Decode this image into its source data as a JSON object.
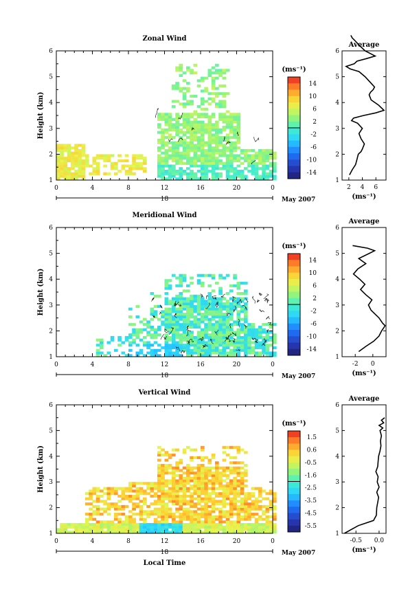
{
  "chart_data": [
    {
      "type": "heatmap",
      "title": "Zonal Wind",
      "ylabel": "Height (km)",
      "xlabel": "",
      "xlim": [
        0,
        24
      ],
      "ylim": [
        1,
        6
      ],
      "x_ticks": [
        "0",
        "4",
        "8",
        "12",
        "16",
        "20",
        "0"
      ],
      "y_ticks": [
        "1",
        "2",
        "3",
        "4",
        "5",
        "6"
      ],
      "date_label": "18",
      "date_right": "May 2007",
      "colorbar": {
        "unit": "(ms⁻¹)",
        "range": [
          -15,
          15
        ],
        "tick_labels": [
          "14",
          "10",
          "6",
          "2",
          "-2",
          "-6",
          "-10",
          "-14"
        ]
      },
      "profile": {
        "title": "Average",
        "xlabel": "(ms⁻¹)",
        "x_ticks": [
          "2",
          "4",
          "6"
        ],
        "xlim": [
          1,
          7.5
        ],
        "heights": [
          1.2,
          1.4,
          1.6,
          1.8,
          2.0,
          2.1,
          2.2,
          2.4,
          2.6,
          2.8,
          3.0,
          3.2,
          3.3,
          3.4,
          3.5,
          3.6,
          3.7,
          3.9,
          4.1,
          4.3,
          4.4,
          4.5,
          4.6,
          4.8,
          5.0,
          5.2,
          5.3,
          5.4,
          5.5,
          5.6,
          5.7,
          5.8,
          6.0,
          6.2,
          6.4,
          6.5,
          6.6
        ],
        "values": [
          2.1,
          2.5,
          3.0,
          3.2,
          3.4,
          3.8,
          4.0,
          4.3,
          3.8,
          3.5,
          4.0,
          3.3,
          2.4,
          2.7,
          4.2,
          6.0,
          7.2,
          6.4,
          5.3,
          5.0,
          5.2,
          5.6,
          5.8,
          5.1,
          4.4,
          3.5,
          2.2,
          1.6,
          2.8,
          3.2,
          4.6,
          5.9,
          4.4,
          3.6,
          2.9,
          2.5,
          2.3
        ]
      }
    },
    {
      "type": "heatmap",
      "title": "Meridional Wind",
      "ylabel": "Height (km)",
      "xlabel": "",
      "xlim": [
        0,
        24
      ],
      "ylim": [
        1,
        6
      ],
      "x_ticks": [
        "0",
        "4",
        "8",
        "12",
        "16",
        "20",
        "0"
      ],
      "y_ticks": [
        "1",
        "2",
        "3",
        "4",
        "5",
        "6"
      ],
      "date_label": "18",
      "date_right": "May 2007",
      "colorbar": {
        "unit": "(ms⁻¹)",
        "range": [
          -15,
          15
        ],
        "tick_labels": [
          "14",
          "10",
          "6",
          "2",
          "-2",
          "-6",
          "-10",
          "-14"
        ]
      },
      "profile": {
        "title": "Average",
        "xlabel": "(ms⁻¹)",
        "x_ticks": [
          "-2",
          "0"
        ],
        "xlim": [
          -3.5,
          1.5
        ],
        "heights": [
          1.2,
          1.4,
          1.6,
          1.8,
          2.0,
          2.2,
          2.3,
          2.5,
          2.6,
          2.8,
          3.0,
          3.2,
          3.4,
          3.6,
          3.8,
          4.0,
          4.2,
          4.4,
          4.6,
          4.8,
          5.0,
          5.1,
          5.2,
          5.3
        ],
        "values": [
          -1.6,
          -0.8,
          0.1,
          0.7,
          1.0,
          1.4,
          1.1,
          0.7,
          0.4,
          -0.2,
          -0.5,
          -0.1,
          -0.8,
          -1.4,
          -0.9,
          -1.5,
          -2.2,
          -1.7,
          -0.8,
          -1.6,
          -0.4,
          0.2,
          -0.6,
          -2.3
        ]
      }
    },
    {
      "type": "heatmap",
      "title": "Vertical Wind",
      "ylabel": "Height (km)",
      "xlabel": "Local Time",
      "xlim": [
        0,
        24
      ],
      "ylim": [
        1,
        6
      ],
      "x_ticks": [
        "0",
        "4",
        "8",
        "12",
        "16",
        "20",
        "0"
      ],
      "y_ticks": [
        "1",
        "2",
        "3",
        "4",
        "5",
        "6"
      ],
      "date_label": "18",
      "date_right": "May 2007",
      "colorbar": {
        "unit": "(ms⁻¹)",
        "range": [
          -6.1,
          2.0
        ],
        "tick_labels": [
          "1.5",
          "0.6",
          "-0.5",
          "-1.6",
          "-2.5",
          "-3.5",
          "-4.5",
          "-5.5"
        ]
      },
      "profile": {
        "title": "Average",
        "xlabel": "(ms⁻¹)",
        "x_ticks": [
          "-0.5",
          "0.0"
        ],
        "xlim": [
          -0.8,
          0.15
        ],
        "heights": [
          1.0,
          1.3,
          1.5,
          1.7,
          2.0,
          2.2,
          2.4,
          2.6,
          2.8,
          3.0,
          3.2,
          3.4,
          3.6,
          3.8,
          4.0,
          4.2,
          4.4,
          4.6,
          4.8,
          5.0,
          5.1,
          5.2,
          5.3,
          5.4,
          5.5
        ],
        "values": [
          -0.75,
          -0.45,
          -0.12,
          -0.06,
          -0.05,
          -0.03,
          -0.01,
          -0.05,
          0.0,
          -0.04,
          -0.02,
          -0.07,
          -0.03,
          -0.02,
          -0.01,
          0.02,
          0.04,
          0.03,
          0.05,
          0.02,
          0.08,
          0.0,
          0.1,
          0.05,
          0.12
        ]
      }
    }
  ]
}
